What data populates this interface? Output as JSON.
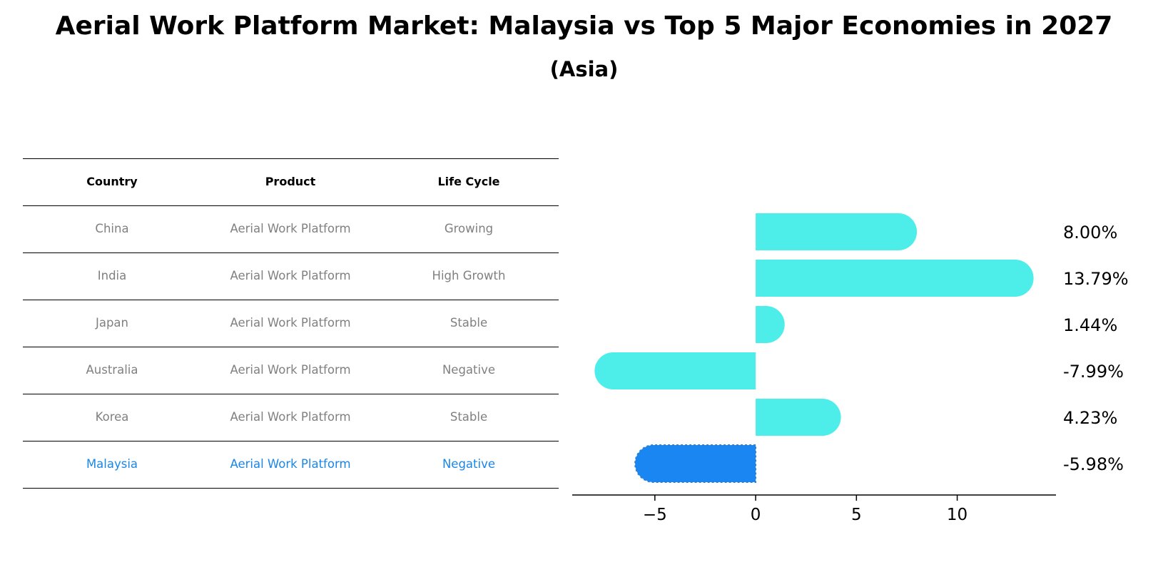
{
  "title": "Aerial Work Platform Market: Malaysia vs Top 5 Major Economies in 2027",
  "subtitle": "(Asia)",
  "table": {
    "headers": [
      "Country",
      "Product",
      "Life Cycle"
    ],
    "rows": [
      {
        "country": "China",
        "product": "Aerial Work Platform",
        "life_cycle": "Growing"
      },
      {
        "country": "India",
        "product": "Aerial Work Platform",
        "life_cycle": "High Growth"
      },
      {
        "country": "Japan",
        "product": "Aerial Work Platform",
        "life_cycle": "Stable"
      },
      {
        "country": "Australia",
        "product": "Aerial Work Platform",
        "life_cycle": "Negative"
      },
      {
        "country": "Korea",
        "product": "Aerial Work Platform",
        "life_cycle": "Stable"
      },
      {
        "country": "Malaysia",
        "product": "Aerial Work Platform",
        "life_cycle": "Negative"
      }
    ],
    "highlight_country": "Malaysia"
  },
  "colors": {
    "bar": "#4deeea",
    "highlight_bar": "#1a86f2",
    "highlight_text": "#1a86e8",
    "table_text": "#808080"
  },
  "chart_data": {
    "type": "bar",
    "orientation": "horizontal",
    "categories": [
      "China",
      "India",
      "Japan",
      "Australia",
      "Korea",
      "Malaysia"
    ],
    "values": [
      8.0,
      13.79,
      1.44,
      -7.99,
      4.23,
      -5.98
    ],
    "value_labels": [
      "8.00%",
      "13.79%",
      "1.44%",
      "-7.99%",
      "4.23%",
      "-5.98%"
    ],
    "xlim": [
      -9.1,
      14.9
    ],
    "xticks": [
      -5,
      0,
      5,
      10
    ],
    "xtick_labels": [
      "−5",
      "0",
      "5",
      "10"
    ],
    "grid": false,
    "highlight": "Malaysia"
  }
}
